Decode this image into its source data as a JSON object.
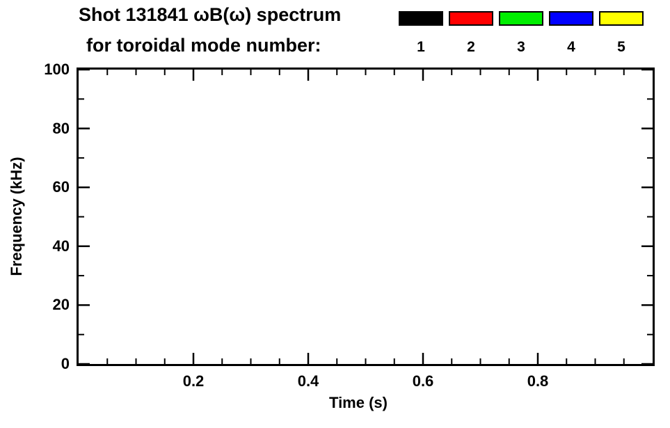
{
  "header": {
    "title_line1": "Shot 131841 ωB(ω) spectrum",
    "title_line2": "for toroidal mode number:"
  },
  "legend": {
    "entries": [
      {
        "label": "1",
        "color": "#000000"
      },
      {
        "label": "2",
        "color": "#ff0000"
      },
      {
        "label": "3",
        "color": "#00ee00"
      },
      {
        "label": "4",
        "color": "#0000ff"
      },
      {
        "label": "5",
        "color": "#ffff00"
      }
    ]
  },
  "chart_data": {
    "type": "spectrogram",
    "title": "Shot 131841 ωB(ω) spectrum for toroidal mode number: 1 2 3 4 5",
    "xlabel": "Time (s)",
    "ylabel": "Frequency (kHz)",
    "xlim": [
      0,
      1.0
    ],
    "ylim": [
      0,
      100
    ],
    "x_major_ticks": [
      0.2,
      0.4,
      0.6,
      0.8
    ],
    "x_tick_labels": [
      "0.2",
      "0.4",
      "0.6",
      "0.8"
    ],
    "x_minor_step": 0.05,
    "y_major_ticks": [
      0,
      20,
      40,
      60,
      80,
      100
    ],
    "y_tick_labels": [
      "0",
      "20",
      "40",
      "60",
      "80",
      "100"
    ],
    "y_minor_step": 10,
    "grid": false,
    "legend_position": "top-right-above-plot",
    "series": []
  }
}
